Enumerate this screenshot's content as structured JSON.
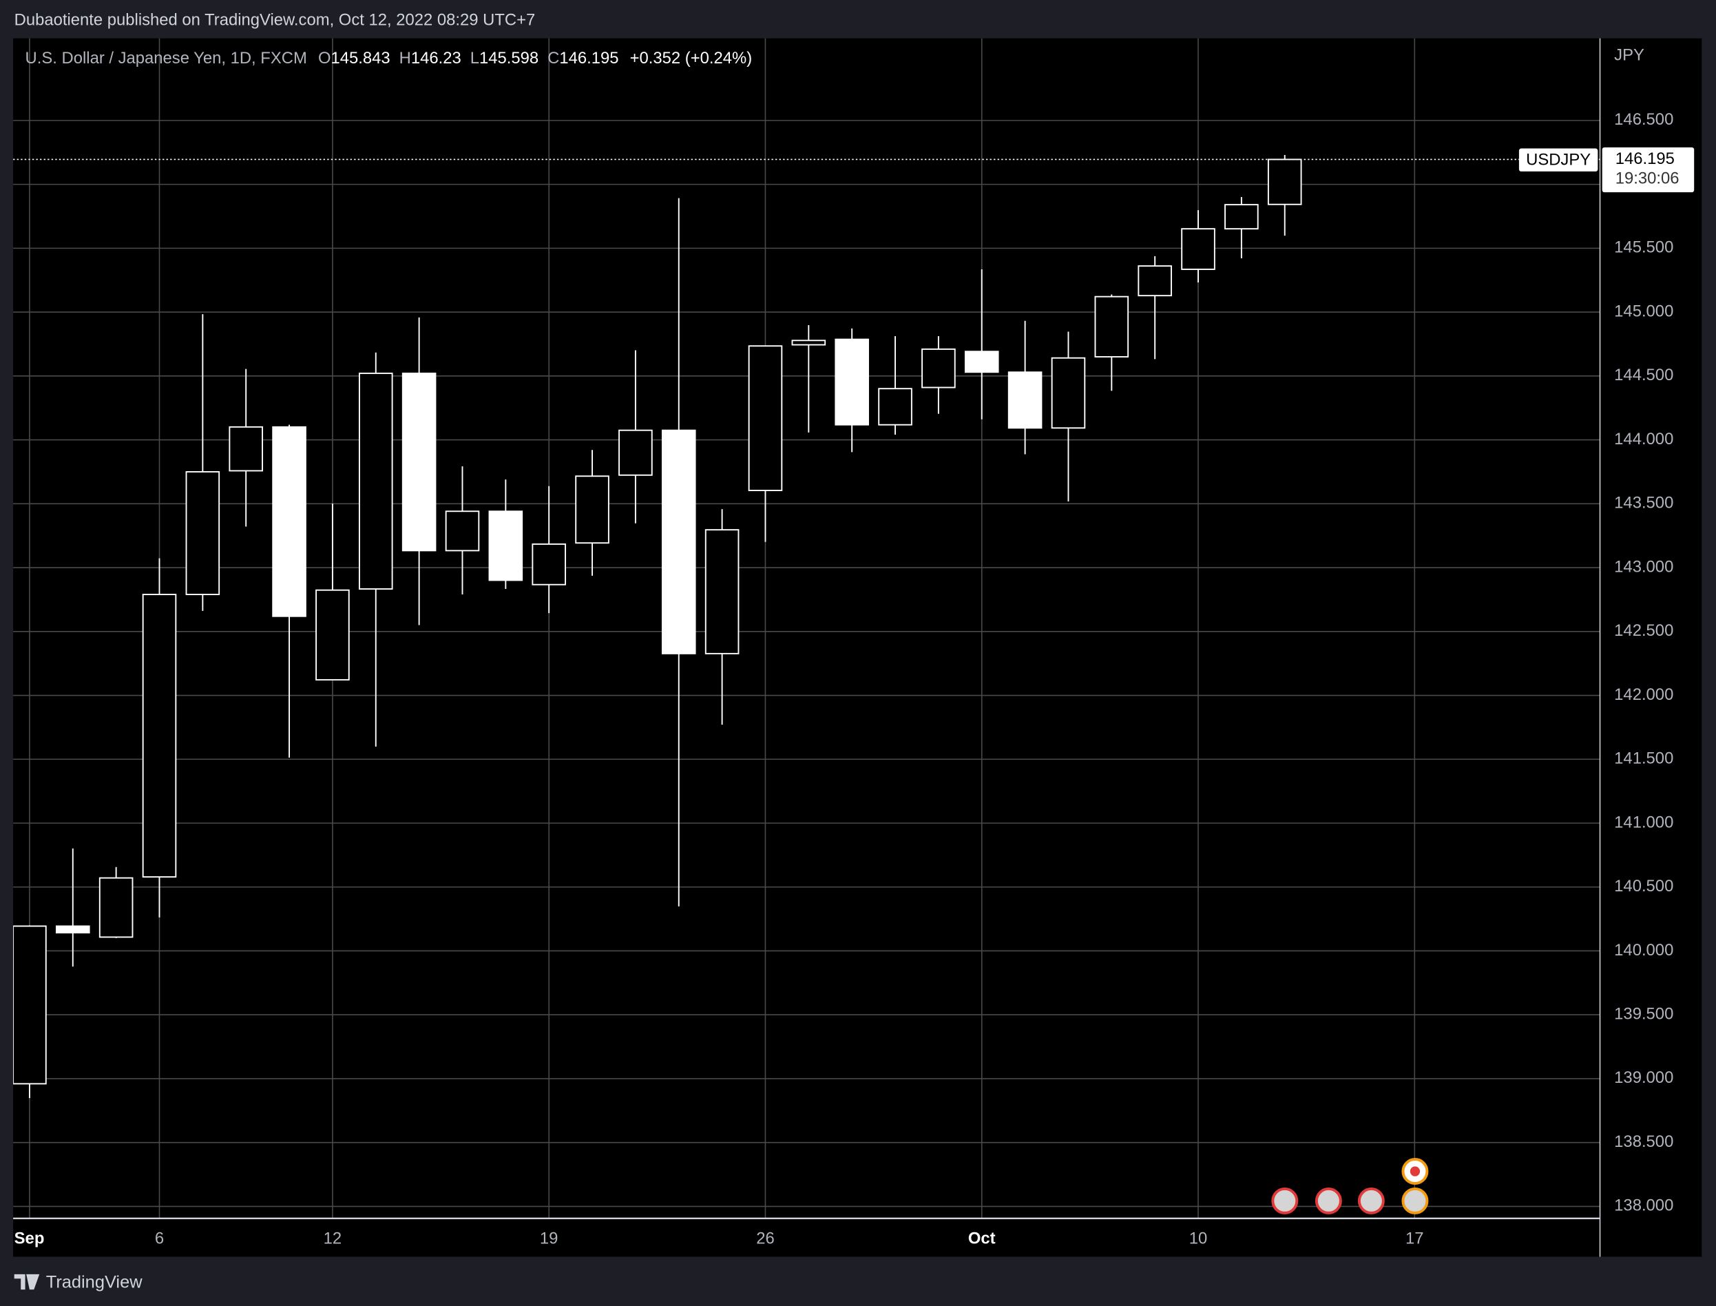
{
  "header": {
    "text": "Dubaotiente published on TradingView.com, Oct 12, 2022 08:29 UTC+7"
  },
  "chart_data": {
    "type": "candlestick",
    "title": "U.S. Dollar / Japanese Yen, 1D, FXCM",
    "ohlc_labels": [
      "O",
      "H",
      "L",
      "C"
    ],
    "change_label": "+0.352 (+0.24%)",
    "symbol": "USDJPY",
    "countdown": "19:30:06",
    "y_unit": "JPY",
    "categories": [
      "Sep",
      null,
      null,
      "6",
      null,
      null,
      null,
      "12",
      null,
      null,
      null,
      null,
      "19",
      null,
      null,
      null,
      null,
      "26",
      null,
      null,
      null,
      null,
      "Oct",
      null,
      null,
      null,
      null,
      "10",
      null,
      null,
      null,
      null,
      "17"
    ],
    "open": [
      138.96,
      140.194,
      140.108,
      140.579,
      142.79,
      143.758,
      144.101,
      142.122,
      142.833,
      144.521,
      143.133,
      143.441,
      142.867,
      143.193,
      143.724,
      144.075,
      142.327,
      143.604,
      144.744,
      144.787,
      144.118,
      144.41,
      144.692,
      144.53,
      144.093,
      144.65,
      145.129,
      145.335,
      145.652,
      145.843,
      null,
      null,
      null
    ],
    "high": [
      140.2,
      140.802,
      140.656,
      143.073,
      144.984,
      144.555,
      144.118,
      143.501,
      144.684,
      144.958,
      143.793,
      143.69,
      143.638,
      143.921,
      144.701,
      145.892,
      143.458,
      144.735,
      144.898,
      144.872,
      144.812,
      144.812,
      145.335,
      144.932,
      144.847,
      145.138,
      145.438,
      145.798,
      145.901,
      146.23,
      null,
      null,
      null
    ],
    "low": [
      138.848,
      139.877,
      140.1,
      140.262,
      142.661,
      143.321,
      141.513,
      142.122,
      141.599,
      142.55,
      142.79,
      142.833,
      142.644,
      142.936,
      143.347,
      140.348,
      141.77,
      143.201,
      144.058,
      143.904,
      144.041,
      144.204,
      144.161,
      143.887,
      143.518,
      144.384,
      144.632,
      145.232,
      145.421,
      145.598,
      null,
      null,
      null
    ],
    "close": [
      140.194,
      140.142,
      140.571,
      142.79,
      143.75,
      144.101,
      142.619,
      142.824,
      144.521,
      143.133,
      143.441,
      142.901,
      143.184,
      143.716,
      144.075,
      142.327,
      143.296,
      144.735,
      144.778,
      144.118,
      144.401,
      144.71,
      144.53,
      144.093,
      144.641,
      145.121,
      145.361,
      145.652,
      145.841,
      146.195,
      null,
      null,
      null
    ],
    "ylim": [
      137.906,
      147.143
    ],
    "yticks": [
      {
        "value": 138,
        "label": "138.000"
      },
      {
        "value": 138.5,
        "label": "138.500"
      },
      {
        "value": 139,
        "label": "139.000"
      },
      {
        "value": 139.5,
        "label": "139.500"
      },
      {
        "value": 140,
        "label": "140.000"
      },
      {
        "value": 140.5,
        "label": "140.500"
      },
      {
        "value": 141,
        "label": "141.000"
      },
      {
        "value": 141.5,
        "label": "141.500"
      },
      {
        "value": 142,
        "label": "142.000"
      },
      {
        "value": 142.5,
        "label": "142.500"
      },
      {
        "value": 143,
        "label": "143.000"
      },
      {
        "value": 143.5,
        "label": "143.500"
      },
      {
        "value": 144,
        "label": "144.000"
      },
      {
        "value": 144.5,
        "label": "144.500"
      },
      {
        "value": 145,
        "label": "145.000"
      },
      {
        "value": 145.5,
        "label": "145.500"
      },
      {
        "value": 146,
        "label": "146.000"
      },
      {
        "value": 146.5,
        "label": "146.500"
      }
    ],
    "grid": true,
    "up_color": "#000000",
    "down_color": "#ffffff",
    "wick_color": "#ffffff"
  },
  "footer": {
    "brand": "TradingView"
  }
}
